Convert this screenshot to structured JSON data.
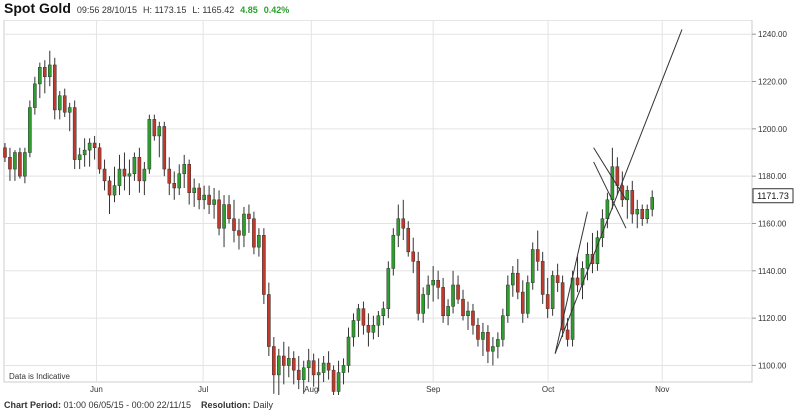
{
  "header": {
    "title": "Spot Gold",
    "datetime": "09:56 28/10/15",
    "high_label": "H: 1173.15",
    "low_label": "L: 1165.42",
    "change": "4.85",
    "change_pct": "0.42%",
    "change_color": "#2ca02c"
  },
  "note": "Data is Indicative",
  "footer": {
    "period_label": "Chart Period:",
    "period_value": "01:00 06/05/15 - 00:00 22/11/15",
    "resolution_label": "Resolution:",
    "resolution_value": "Daily"
  },
  "chart_data": {
    "type": "candlestick",
    "x_tick_labels": [
      "Jun",
      "Jul",
      "Aug",
      "Sep",
      "Oct",
      "Nov"
    ],
    "y_ticks": [
      1100,
      1120,
      1140,
      1160,
      1180,
      1200,
      1220,
      1240
    ],
    "y_tick_labels": [
      "1100.00",
      "1120.00",
      "1140.00",
      "1160.00",
      "1180.00",
      "1200.00",
      "1220.00",
      "1240.00"
    ],
    "ylim": [
      1093,
      1246
    ],
    "last_price": "1171.73",
    "grid": true,
    "colors": {
      "up": "#2e9e2e",
      "down": "#c0392b",
      "grid": "#e3e3e3",
      "line": "#333333"
    },
    "candles": [
      [
        1192,
        1194,
        1186,
        1188
      ],
      [
        1188,
        1192,
        1178,
        1183
      ],
      [
        1183,
        1191,
        1178,
        1190
      ],
      [
        1190,
        1192,
        1179,
        1180
      ],
      [
        1180,
        1192,
        1177,
        1190
      ],
      [
        1190,
        1212,
        1188,
        1209
      ],
      [
        1209,
        1222,
        1206,
        1219
      ],
      [
        1219,
        1228,
        1213,
        1226
      ],
      [
        1226,
        1229,
        1215,
        1222
      ],
      [
        1222,
        1233,
        1218,
        1227
      ],
      [
        1227,
        1230,
        1204,
        1208
      ],
      [
        1208,
        1216,
        1204,
        1214
      ],
      [
        1214,
        1217,
        1205,
        1207
      ],
      [
        1207,
        1211,
        1199,
        1209
      ],
      [
        1209,
        1212,
        1183,
        1187
      ],
      [
        1187,
        1192,
        1183,
        1189
      ],
      [
        1189,
        1196,
        1184,
        1191
      ],
      [
        1191,
        1196,
        1184,
        1194
      ],
      [
        1194,
        1197,
        1187,
        1192
      ],
      [
        1192,
        1194,
        1181,
        1183
      ],
      [
        1183,
        1187,
        1174,
        1178
      ],
      [
        1178,
        1180,
        1164,
        1172
      ],
      [
        1172,
        1184,
        1169,
        1176
      ],
      [
        1176,
        1189,
        1172,
        1183
      ],
      [
        1183,
        1190,
        1174,
        1180
      ],
      [
        1180,
        1187,
        1172,
        1181
      ],
      [
        1181,
        1190,
        1178,
        1188
      ],
      [
        1188,
        1192,
        1173,
        1178
      ],
      [
        1178,
        1186,
        1172,
        1183
      ],
      [
        1183,
        1206,
        1181,
        1204
      ],
      [
        1204,
        1206,
        1195,
        1197
      ],
      [
        1197,
        1203,
        1188,
        1201
      ],
      [
        1201,
        1203,
        1180,
        1183
      ],
      [
        1183,
        1188,
        1172,
        1177
      ],
      [
        1177,
        1182,
        1170,
        1175
      ],
      [
        1175,
        1185,
        1172,
        1181
      ],
      [
        1181,
        1189,
        1175,
        1185
      ],
      [
        1185,
        1187,
        1168,
        1173
      ],
      [
        1173,
        1179,
        1167,
        1175
      ],
      [
        1175,
        1177,
        1166,
        1170
      ],
      [
        1170,
        1176,
        1166,
        1172
      ],
      [
        1172,
        1176,
        1164,
        1168
      ],
      [
        1168,
        1175,
        1162,
        1170
      ],
      [
        1170,
        1174,
        1155,
        1158
      ],
      [
        1158,
        1172,
        1150,
        1168
      ],
      [
        1168,
        1172,
        1160,
        1162
      ],
      [
        1162,
        1170,
        1152,
        1157
      ],
      [
        1157,
        1162,
        1149,
        1155
      ],
      [
        1155,
        1167,
        1150,
        1164
      ],
      [
        1164,
        1168,
        1156,
        1162
      ],
      [
        1162,
        1165,
        1147,
        1150
      ],
      [
        1150,
        1158,
        1146,
        1155
      ],
      [
        1155,
        1158,
        1126,
        1130
      ],
      [
        1130,
        1135,
        1104,
        1108
      ],
      [
        1108,
        1112,
        1088,
        1096
      ],
      [
        1096,
        1107,
        1087,
        1104
      ],
      [
        1104,
        1110,
        1092,
        1100
      ],
      [
        1100,
        1108,
        1095,
        1103
      ],
      [
        1103,
        1106,
        1092,
        1098
      ],
      [
        1098,
        1104,
        1090,
        1094
      ],
      [
        1094,
        1102,
        1088,
        1099
      ],
      [
        1099,
        1107,
        1093,
        1102
      ],
      [
        1102,
        1105,
        1091,
        1096
      ],
      [
        1096,
        1103,
        1089,
        1097
      ],
      [
        1097,
        1104,
        1093,
        1101
      ],
      [
        1101,
        1106,
        1094,
        1098
      ],
      [
        1098,
        1100,
        1085,
        1089
      ],
      [
        1089,
        1102,
        1086,
        1097
      ],
      [
        1097,
        1103,
        1092,
        1100
      ],
      [
        1100,
        1116,
        1097,
        1112
      ],
      [
        1112,
        1122,
        1108,
        1119
      ],
      [
        1119,
        1126,
        1112,
        1124
      ],
      [
        1124,
        1127,
        1113,
        1117
      ],
      [
        1117,
        1122,
        1108,
        1114
      ],
      [
        1114,
        1121,
        1111,
        1117
      ],
      [
        1117,
        1123,
        1112,
        1121
      ],
      [
        1121,
        1127,
        1117,
        1124
      ],
      [
        1124,
        1144,
        1120,
        1141
      ],
      [
        1141,
        1158,
        1138,
        1155
      ],
      [
        1155,
        1168,
        1150,
        1162
      ],
      [
        1162,
        1170,
        1153,
        1158
      ],
      [
        1158,
        1161,
        1146,
        1148
      ],
      [
        1148,
        1154,
        1139,
        1144
      ],
      [
        1144,
        1148,
        1119,
        1122
      ],
      [
        1122,
        1133,
        1118,
        1130
      ],
      [
        1130,
        1138,
        1124,
        1134
      ],
      [
        1134,
        1142,
        1127,
        1136
      ],
      [
        1136,
        1140,
        1128,
        1133
      ],
      [
        1133,
        1137,
        1118,
        1121
      ],
      [
        1121,
        1128,
        1117,
        1125
      ],
      [
        1125,
        1140,
        1122,
        1134
      ],
      [
        1134,
        1138,
        1126,
        1128
      ],
      [
        1128,
        1132,
        1119,
        1121
      ],
      [
        1121,
        1127,
        1115,
        1123
      ],
      [
        1123,
        1126,
        1113,
        1117
      ],
      [
        1117,
        1120,
        1108,
        1111
      ],
      [
        1111,
        1118,
        1104,
        1114
      ],
      [
        1114,
        1117,
        1101,
        1106
      ],
      [
        1106,
        1112,
        1100,
        1108
      ],
      [
        1108,
        1114,
        1103,
        1111
      ],
      [
        1111,
        1124,
        1108,
        1121
      ],
      [
        1121,
        1138,
        1118,
        1134
      ],
      [
        1134,
        1142,
        1129,
        1139
      ],
      [
        1139,
        1145,
        1128,
        1131
      ],
      [
        1131,
        1136,
        1118,
        1122
      ],
      [
        1122,
        1138,
        1120,
        1135
      ],
      [
        1135,
        1152,
        1132,
        1149
      ],
      [
        1149,
        1157,
        1140,
        1144
      ],
      [
        1144,
        1148,
        1126,
        1130
      ],
      [
        1130,
        1137,
        1120,
        1124
      ],
      [
        1124,
        1140,
        1121,
        1138
      ],
      [
        1138,
        1143,
        1131,
        1135
      ],
      [
        1135,
        1138,
        1112,
        1115
      ],
      [
        1115,
        1120,
        1108,
        1111
      ],
      [
        1111,
        1140,
        1108,
        1137
      ],
      [
        1137,
        1146,
        1131,
        1134
      ],
      [
        1134,
        1144,
        1128,
        1141
      ],
      [
        1141,
        1152,
        1136,
        1147
      ],
      [
        1147,
        1156,
        1139,
        1143
      ],
      [
        1143,
        1157,
        1140,
        1154
      ],
      [
        1154,
        1166,
        1150,
        1162
      ],
      [
        1162,
        1173,
        1158,
        1170
      ],
      [
        1170,
        1192,
        1166,
        1184
      ],
      [
        1184,
        1188,
        1172,
        1176
      ],
      [
        1176,
        1182,
        1167,
        1170
      ],
      [
        1170,
        1176,
        1162,
        1174
      ],
      [
        1174,
        1178,
        1160,
        1164
      ],
      [
        1164,
        1170,
        1158,
        1166
      ],
      [
        1166,
        1168,
        1159,
        1162
      ],
      [
        1162,
        1168,
        1160,
        1166
      ],
      [
        1166,
        1174,
        1163,
        1171
      ]
    ],
    "annotations": {
      "channel_lines": [
        [
          0.7883,
          1192,
          0.8316,
          1170
        ],
        [
          0.7883,
          1186,
          0.8316,
          1158
        ]
      ],
      "trend_lines": [
        [
          0.7368,
          1105,
          0.9064,
          1242
        ],
        [
          0.7368,
          1105,
          0.78,
          1165
        ]
      ]
    }
  }
}
